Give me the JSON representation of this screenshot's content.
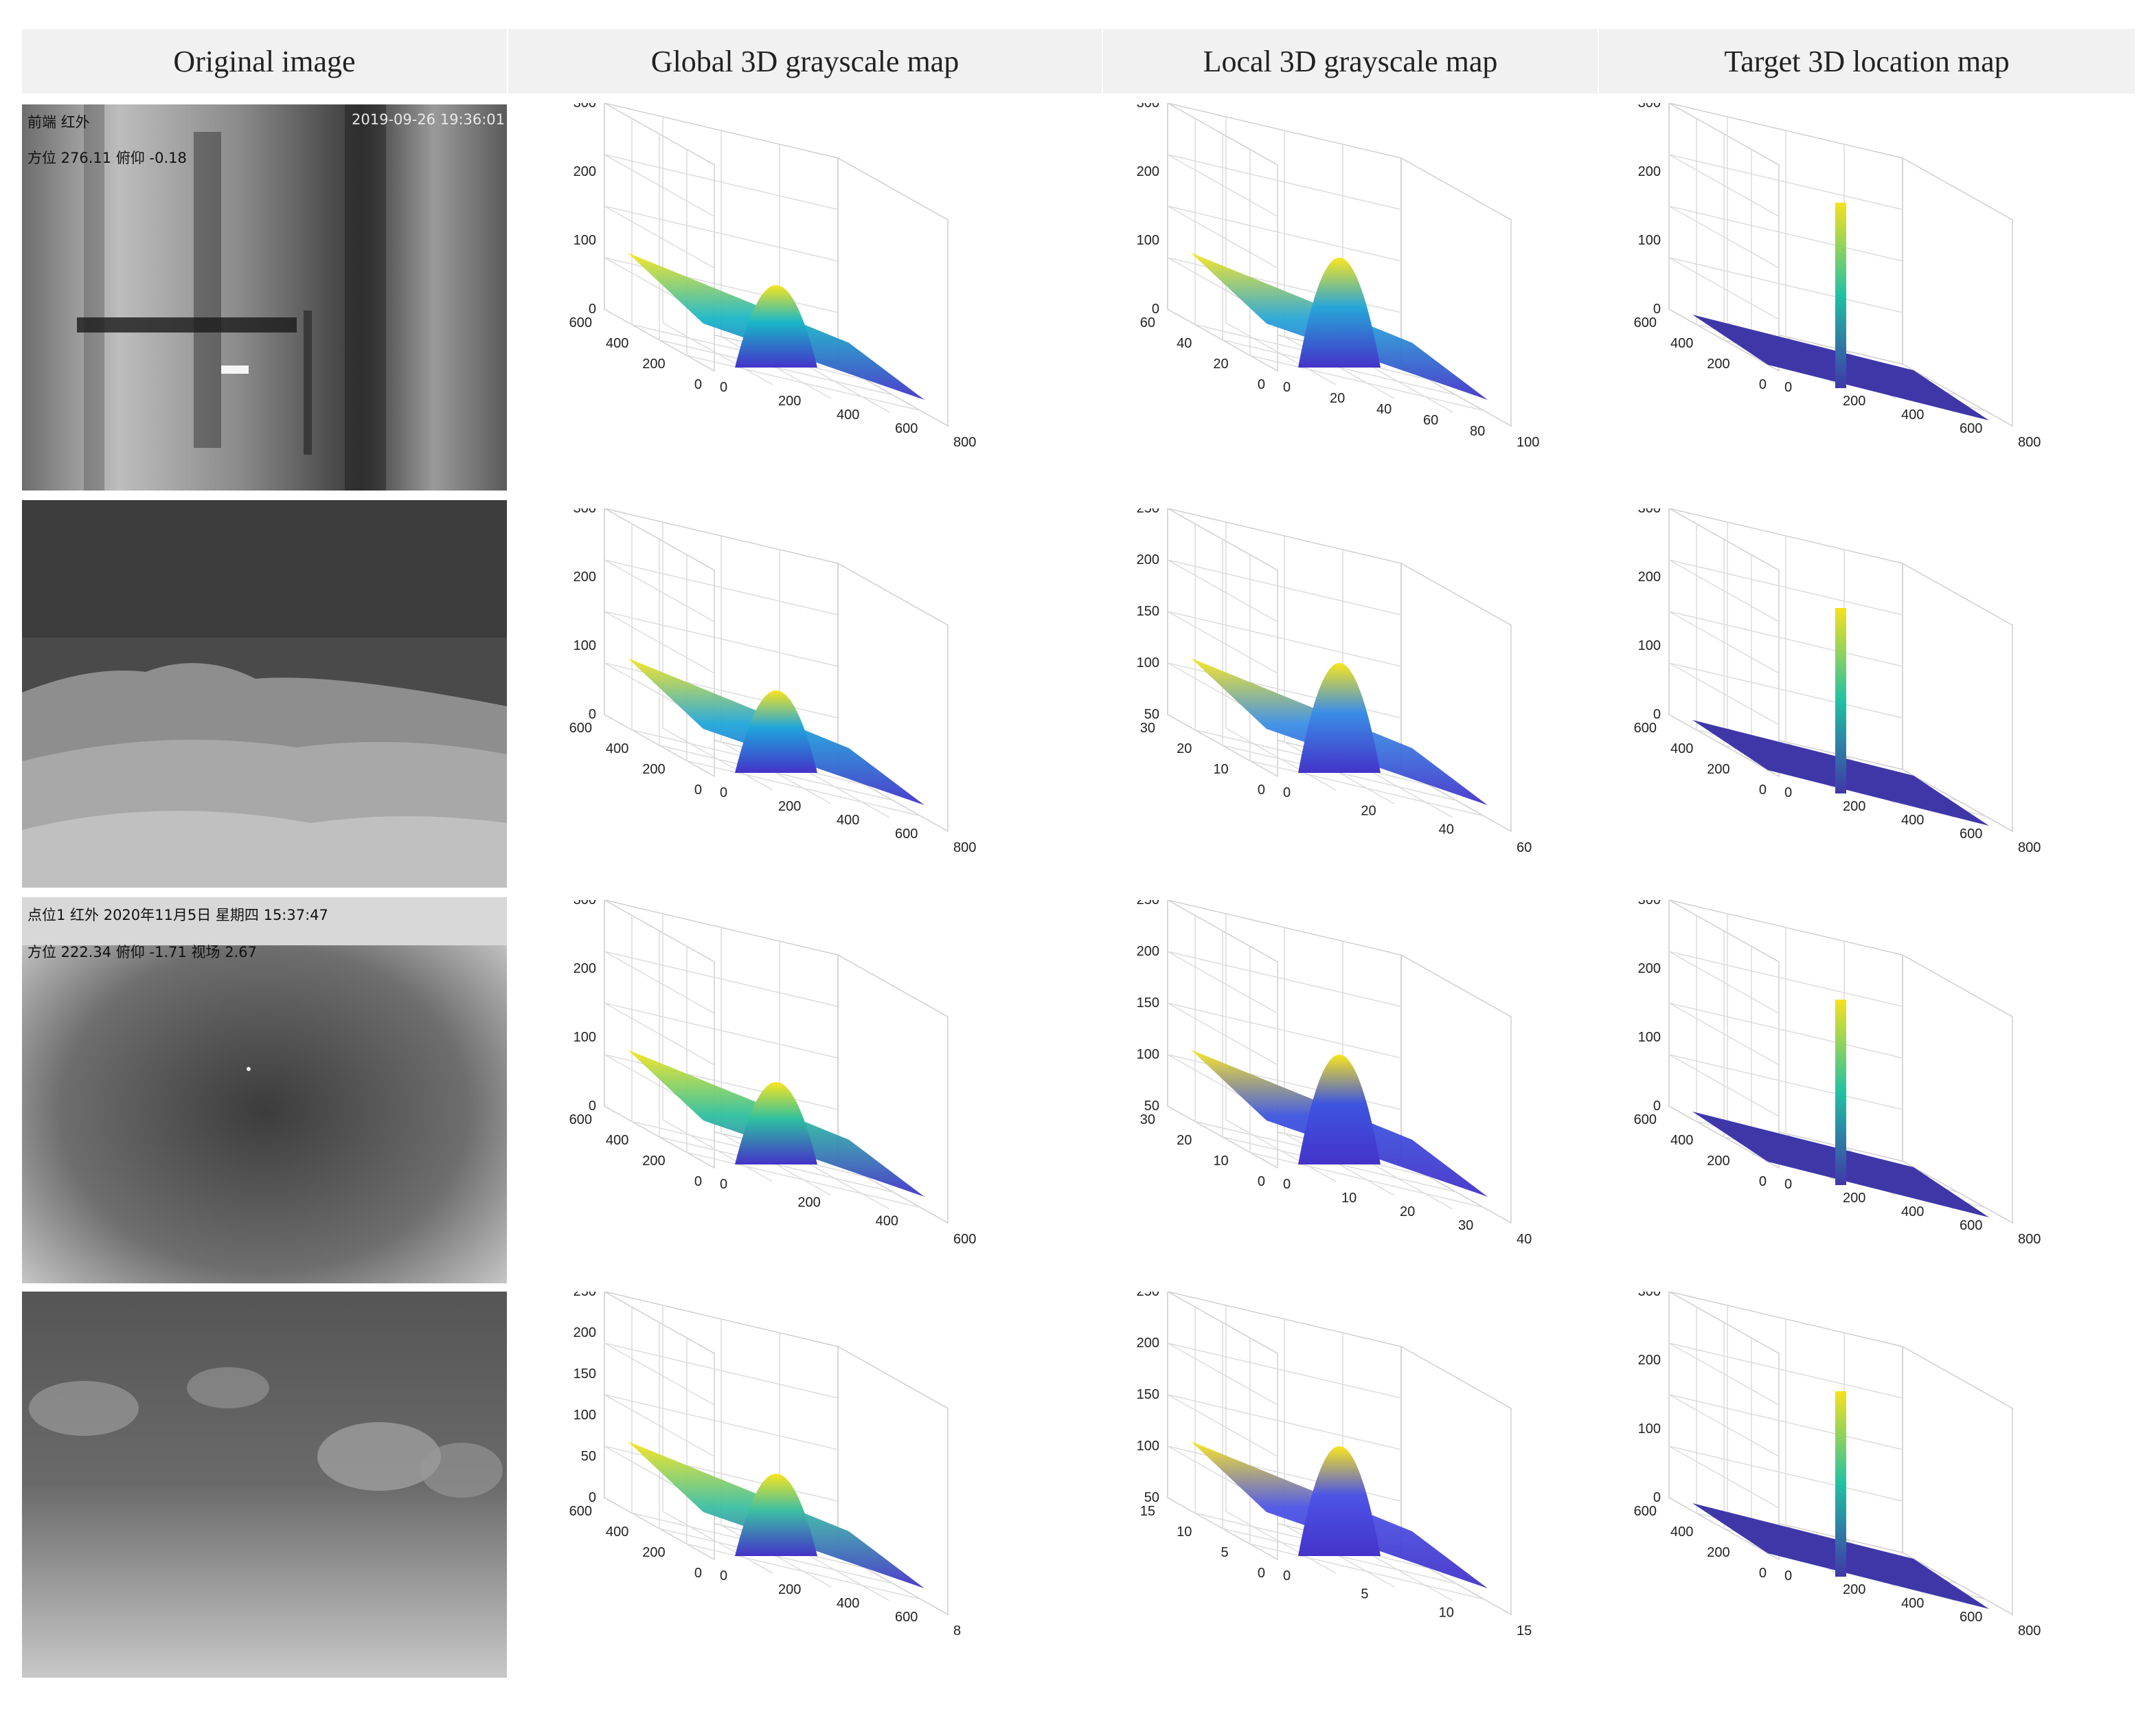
{
  "headers": [
    "Original image",
    "Global 3D grayscale map",
    "Local 3D grayscale map",
    "Target 3D location map"
  ],
  "rows": [
    {
      "image": {
        "overlay": [
          "前端  红外",
          "2019-09-26  19:36:01",
          "方位 276.11    俯仰 -0.18"
        ]
      },
      "global": {
        "z_ticks": [
          "300",
          "200",
          "100",
          "0"
        ],
        "y_ticks": [
          "600",
          "400",
          "200",
          "0"
        ],
        "x_ticks": [
          "0",
          "200",
          "400",
          "600",
          "800"
        ]
      },
      "local": {
        "z_ticks": [
          "300",
          "200",
          "100",
          "0"
        ],
        "y_ticks": [
          "60",
          "40",
          "20",
          "0"
        ],
        "x_ticks": [
          "0",
          "20",
          "40",
          "60",
          "80",
          "100"
        ]
      },
      "target": {
        "z_ticks": [
          "300",
          "200",
          "100",
          "0"
        ],
        "y_ticks": [
          "600",
          "400",
          "200",
          "0"
        ],
        "x_ticks": [
          "0",
          "200",
          "400",
          "600",
          "800"
        ]
      }
    },
    {
      "image": {
        "overlay": []
      },
      "global": {
        "z_ticks": [
          "300",
          "200",
          "100",
          "0"
        ],
        "y_ticks": [
          "600",
          "400",
          "200",
          "0"
        ],
        "x_ticks": [
          "0",
          "200",
          "400",
          "600",
          "800"
        ]
      },
      "local": {
        "z_ticks": [
          "250",
          "200",
          "150",
          "100",
          "50"
        ],
        "y_ticks": [
          "30",
          "20",
          "10",
          "0"
        ],
        "x_ticks": [
          "0",
          "20",
          "40",
          "60"
        ]
      },
      "target": {
        "z_ticks": [
          "300",
          "200",
          "100",
          "0"
        ],
        "y_ticks": [
          "600",
          "400",
          "200",
          "0"
        ],
        "x_ticks": [
          "0",
          "200",
          "400",
          "600",
          "800"
        ]
      }
    },
    {
      "image": {
        "overlay": [
          "点位1        红外      2020年11月5日    星期四          15:37:47",
          "方位 222.34    俯仰 -1.71    视场 2.67"
        ]
      },
      "global": {
        "z_ticks": [
          "300",
          "200",
          "100",
          "0"
        ],
        "y_ticks": [
          "600",
          "400",
          "200",
          "0"
        ],
        "x_ticks": [
          "0",
          "200",
          "400",
          "600"
        ]
      },
      "local": {
        "z_ticks": [
          "250",
          "200",
          "150",
          "100",
          "50"
        ],
        "y_ticks": [
          "30",
          "20",
          "10",
          "0"
        ],
        "x_ticks": [
          "0",
          "10",
          "20",
          "30",
          "40"
        ]
      },
      "target": {
        "z_ticks": [
          "300",
          "200",
          "100",
          "0"
        ],
        "y_ticks": [
          "600",
          "400",
          "200",
          "0"
        ],
        "x_ticks": [
          "0",
          "200",
          "400",
          "600",
          "800"
        ]
      }
    },
    {
      "image": {
        "overlay": []
      },
      "global": {
        "z_ticks": [
          "250",
          "200",
          "150",
          "100",
          "50",
          "0"
        ],
        "y_ticks": [
          "600",
          "400",
          "200",
          "0"
        ],
        "x_ticks": [
          "0",
          "200",
          "400",
          "600",
          "8"
        ]
      },
      "local": {
        "z_ticks": [
          "250",
          "200",
          "150",
          "100",
          "50"
        ],
        "y_ticks": [
          "15",
          "10",
          "5",
          "0"
        ],
        "x_ticks": [
          "0",
          "5",
          "10",
          "15"
        ]
      },
      "target": {
        "z_ticks": [
          "300",
          "200",
          "100",
          "0"
        ],
        "y_ticks": [
          "600",
          "400",
          "200",
          "0"
        ],
        "x_ticks": [
          "0",
          "200",
          "400",
          "600",
          "800"
        ]
      }
    }
  ]
}
